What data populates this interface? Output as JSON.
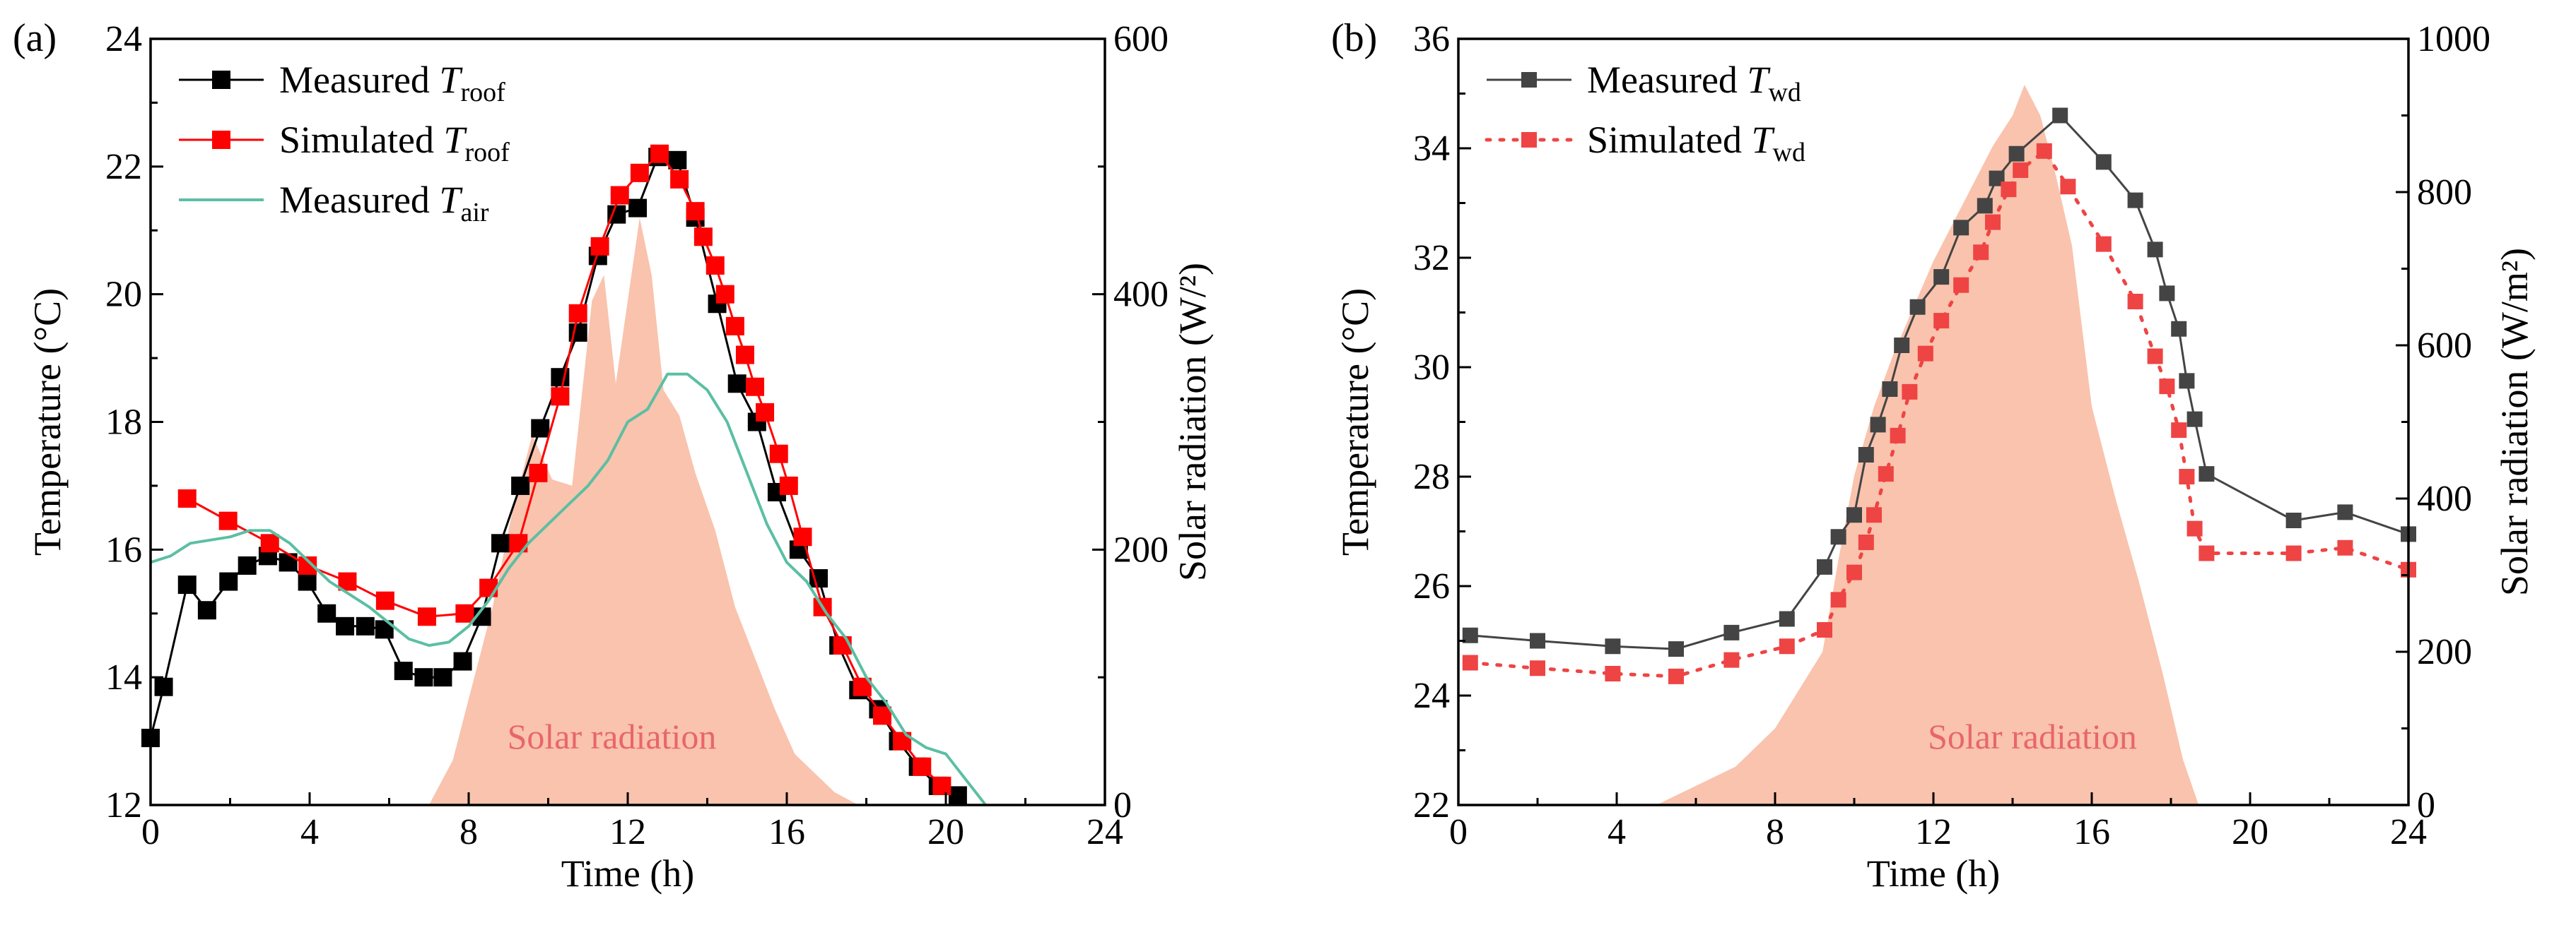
{
  "colors": {
    "black": "#000000",
    "red": "#ff0000",
    "teal": "#5bbfa3",
    "solar_fill": "#f9c3ad",
    "solar_label": "#e8666a",
    "gray": "#444444",
    "red_b": "#ef4444"
  },
  "chart_data": [
    {
      "type": "line",
      "panel_label": "(a)",
      "xlabel": "Time (h)",
      "ylabel": "Temperature (°C)",
      "y2label": "Solar radiation (W/²)",
      "xlim": [
        0,
        24
      ],
      "ylim": [
        12,
        24
      ],
      "y2lim": [
        0,
        600
      ],
      "xticks": [
        0,
        4,
        8,
        12,
        16,
        20,
        24
      ],
      "yticks": [
        12,
        14,
        16,
        18,
        20,
        22,
        24
      ],
      "y2ticks": [
        0,
        200,
        400,
        600
      ],
      "xtick_labels": [
        "0",
        "4",
        "8",
        "12",
        "16",
        "20",
        "24"
      ],
      "ytick_labels": [
        "12",
        "14",
        "16",
        "18",
        "20",
        "22",
        "24"
      ],
      "y2tick_labels": [
        "0",
        "200",
        "400",
        "600"
      ],
      "annotation": "Solar radiation",
      "legend": {
        "position": "top-left",
        "entries": [
          {
            "prefix": "Measured ",
            "var": "T",
            "sub": "roof"
          },
          {
            "prefix": "Simulated ",
            "var": "T",
            "sub": "roof"
          },
          {
            "prefix": "Measured ",
            "var": "T",
            "sub": "air"
          }
        ]
      },
      "series": [
        {
          "name": "Measured T_roof",
          "axis": "left",
          "style": "line+square",
          "color": "#000000",
          "x": [
            0,
            0.33,
            0.92,
            1.42,
            1.96,
            2.43,
            2.95,
            3.46,
            3.94,
            4.43,
            4.89,
            5.4,
            5.88,
            6.36,
            6.87,
            7.35,
            7.85,
            8.33,
            8.8,
            9.3,
            9.8,
            10.3,
            10.75,
            11.25,
            11.72,
            12.25,
            12.75,
            13.25,
            13.7,
            14.25,
            14.75,
            15.25,
            15.75,
            16.3,
            16.8,
            17.3,
            17.8,
            18.3,
            18.8,
            19.3,
            19.8,
            20.3
          ],
          "y": [
            13.05,
            13.85,
            15.45,
            15.05,
            15.5,
            15.75,
            15.9,
            15.8,
            15.5,
            15.0,
            14.8,
            14.8,
            14.75,
            14.1,
            14.0,
            14.0,
            14.25,
            14.95,
            16.1,
            17.0,
            17.9,
            18.7,
            19.4,
            20.6,
            21.25,
            21.35,
            22.15,
            22.1,
            21.2,
            19.85,
            18.6,
            18.0,
            16.9,
            16.0,
            15.55,
            14.5,
            13.8,
            13.5,
            13.0,
            12.6,
            12.3,
            12.15
          ]
        },
        {
          "name": "Simulated T_roof",
          "axis": "left",
          "style": "line+square",
          "color": "#ff0000",
          "x": [
            0.92,
            1.95,
            3.0,
            3.95,
            4.95,
            5.9,
            6.95,
            7.9,
            8.5,
            9.25,
            9.75,
            10.3,
            10.75,
            11.3,
            11.8,
            12.3,
            12.8,
            13.3,
            13.7,
            13.9,
            14.2,
            14.45,
            14.7,
            14.95,
            15.2,
            15.45,
            15.8,
            16.05,
            16.4,
            16.9,
            17.4,
            17.9,
            18.4,
            18.9,
            19.4,
            19.9
          ],
          "y": [
            16.8,
            16.45,
            16.1,
            15.75,
            15.5,
            15.2,
            14.95,
            15.0,
            15.4,
            16.1,
            17.2,
            18.4,
            19.7,
            20.75,
            21.55,
            21.9,
            22.2,
            21.8,
            21.3,
            20.9,
            20.45,
            20.0,
            19.5,
            19.05,
            18.55,
            18.15,
            17.5,
            17.0,
            16.2,
            15.1,
            14.5,
            13.85,
            13.4,
            13.0,
            12.6,
            12.3
          ]
        },
        {
          "name": "Measured T_air",
          "axis": "left",
          "style": "line",
          "color": "#5bbfa3",
          "x": [
            0,
            0.5,
            1.0,
            1.5,
            2.0,
            2.5,
            3.0,
            3.5,
            4.0,
            4.5,
            5.0,
            5.5,
            6.0,
            6.5,
            7.0,
            7.5,
            8.0,
            8.5,
            9.0,
            9.5,
            10.0,
            10.5,
            11.0,
            11.5,
            12.0,
            12.5,
            13.0,
            13.5,
            14.0,
            14.5,
            15.0,
            15.5,
            16.0,
            16.5,
            17.0,
            17.5,
            18.0,
            18.5,
            19.0,
            19.5,
            20.0,
            20.5,
            21.0
          ],
          "y": [
            15.8,
            15.9,
            16.1,
            16.15,
            16.2,
            16.3,
            16.3,
            16.1,
            15.8,
            15.5,
            15.3,
            15.1,
            14.85,
            14.6,
            14.5,
            14.55,
            14.8,
            15.2,
            15.7,
            16.1,
            16.4,
            16.7,
            17.0,
            17.4,
            18.0,
            18.2,
            18.75,
            18.75,
            18.5,
            18.0,
            17.2,
            16.4,
            15.8,
            15.5,
            15.0,
            14.6,
            14.0,
            13.6,
            13.1,
            12.9,
            12.8,
            12.4,
            12.0
          ]
        },
        {
          "name": "Solar radiation",
          "axis": "right",
          "style": "area",
          "color": "#f9c3ad",
          "x": [
            7.0,
            7.6,
            8.1,
            8.6,
            9.1,
            9.6,
            10.1,
            10.6,
            11.1,
            11.4,
            11.7,
            12.0,
            12.3,
            12.6,
            12.9,
            13.3,
            13.7,
            14.2,
            14.7,
            15.2,
            15.7,
            16.2,
            16.7,
            17.2,
            17.8
          ],
          "y": [
            0,
            35,
            95,
            155,
            230,
            290,
            255,
            250,
            395,
            415,
            330,
            395,
            460,
            415,
            325,
            305,
            260,
            215,
            155,
            115,
            75,
            40,
            25,
            10,
            0
          ]
        }
      ]
    },
    {
      "type": "line",
      "panel_label": "(b)",
      "xlabel": "Time (h)",
      "ylabel": "Temperature (°C)",
      "y2label": "Solar radiation (W/m²)",
      "xlim": [
        0,
        24
      ],
      "ylim": [
        22,
        36
      ],
      "y2lim": [
        0,
        1000
      ],
      "xticks": [
        0,
        4,
        8,
        12,
        16,
        20,
        24
      ],
      "yticks": [
        22,
        24,
        26,
        28,
        30,
        32,
        34,
        36
      ],
      "y2ticks": [
        0,
        200,
        400,
        600,
        800,
        1000
      ],
      "xtick_labels": [
        "0",
        "4",
        "8",
        "12",
        "16",
        "20",
        "24"
      ],
      "ytick_labels": [
        "22",
        "24",
        "26",
        "28",
        "30",
        "32",
        "34",
        "36"
      ],
      "y2tick_labels": [
        "0",
        "200",
        "400",
        "600",
        "800",
        "1000"
      ],
      "annotation": "Solar radiation",
      "legend": {
        "position": "top-left",
        "entries": [
          {
            "prefix": "Measured ",
            "var": "T",
            "sub": "wd"
          },
          {
            "prefix": "Simulated ",
            "var": "T",
            "sub": "wd"
          }
        ]
      },
      "series": [
        {
          "name": "Measured T_wd",
          "axis": "left",
          "style": "line+square",
          "color": "#444444",
          "x": [
            0.3,
            2.0,
            3.9,
            5.5,
            6.9,
            8.3,
            9.25,
            9.6,
            10.0,
            10.3,
            10.6,
            10.9,
            11.2,
            11.6,
            12.2,
            12.7,
            13.3,
            13.6,
            14.1,
            15.2,
            16.3,
            17.1,
            17.6,
            17.9,
            18.2,
            18.4,
            18.6,
            18.9,
            21.1,
            22.4,
            24.0
          ],
          "y": [
            25.1,
            25.0,
            24.9,
            24.85,
            25.15,
            25.4,
            26.35,
            26.9,
            27.3,
            28.4,
            28.95,
            29.6,
            30.4,
            31.1,
            31.65,
            32.55,
            32.95,
            33.45,
            33.9,
            34.6,
            33.75,
            33.05,
            32.15,
            31.35,
            30.7,
            29.75,
            29.05,
            28.05,
            27.2,
            27.35,
            26.95
          ]
        },
        {
          "name": "Simulated T_wd",
          "axis": "left",
          "style": "dotted+square",
          "color": "#ef4444",
          "x": [
            0.3,
            2.0,
            3.9,
            5.5,
            6.9,
            8.3,
            9.25,
            9.6,
            10.0,
            10.3,
            10.5,
            10.8,
            11.1,
            11.4,
            11.8,
            12.2,
            12.7,
            13.2,
            13.5,
            13.9,
            14.2,
            14.8,
            15.4,
            16.3,
            17.1,
            17.6,
            17.9,
            18.2,
            18.4,
            18.6,
            18.9,
            21.1,
            22.4,
            24.0
          ],
          "y": [
            24.6,
            24.5,
            24.4,
            24.35,
            24.65,
            24.9,
            25.2,
            25.75,
            26.25,
            26.8,
            27.3,
            28.05,
            28.75,
            29.55,
            30.25,
            30.85,
            31.5,
            32.1,
            32.65,
            33.25,
            33.6,
            33.95,
            33.3,
            32.25,
            31.2,
            30.2,
            29.65,
            28.85,
            28.0,
            27.05,
            26.6,
            26.6,
            26.7,
            26.3
          ]
        },
        {
          "name": "Solar radiation",
          "axis": "right",
          "style": "area",
          "color": "#f9c3ad",
          "x": [
            5.0,
            6.0,
            7.0,
            8.0,
            8.6,
            9.2,
            9.6,
            10.0,
            10.5,
            11.0,
            11.5,
            12.0,
            12.5,
            13.0,
            13.5,
            14.0,
            14.3,
            14.7,
            15.1,
            15.5,
            16.0,
            16.6,
            17.2,
            17.8,
            18.3,
            18.7
          ],
          "y": [
            0,
            25,
            50,
            100,
            150,
            200,
            320,
            430,
            520,
            590,
            650,
            710,
            760,
            810,
            860,
            900,
            940,
            900,
            820,
            730,
            520,
            400,
            290,
            170,
            60,
            0
          ]
        }
      ]
    }
  ]
}
